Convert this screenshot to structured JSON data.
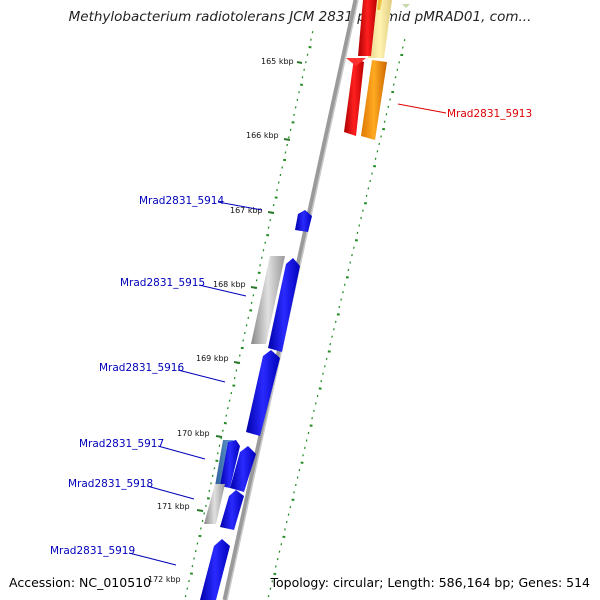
{
  "header": {
    "title": "Methylobacterium radiotolerans JCM 2831 plasmid pMRAD01, com..."
  },
  "footer": {
    "accession": "Accession: NC_010510",
    "topology": "Topology: circular; Length: 586,164 bp; Genes: 514"
  },
  "ticks": [
    "165 kbp",
    "166 kbp",
    "167 kbp",
    "168 kbp",
    "169 kbp",
    "170 kbp",
    "171 kbp",
    "172 kbp"
  ],
  "genes": [
    {
      "label": "Mrad2831_5913",
      "strand": "forward",
      "color": "#dd0000"
    },
    {
      "label": "Mrad2831_5914",
      "strand": "reverse",
      "color": "#0000bb"
    },
    {
      "label": "Mrad2831_5915",
      "strand": "reverse",
      "color": "#0000bb"
    },
    {
      "label": "Mrad2831_5916",
      "strand": "reverse",
      "color": "#0000bb"
    },
    {
      "label": "Mrad2831_5917",
      "strand": "reverse",
      "color": "#0000bb"
    },
    {
      "label": "Mrad2831_5918",
      "strand": "reverse",
      "color": "#0000bb"
    },
    {
      "label": "Mrad2831_5919",
      "strand": "reverse",
      "color": "#0000bb"
    }
  ],
  "colors": {
    "backbone": "#888888",
    "gc_skew": "#228b22",
    "forward_gene": "#ee0000",
    "forward_gene_shadow": "#ff9900",
    "reverse_gene": "#0000ee",
    "reverse_shadow": "#b0b0b0",
    "highlight": "#f5e6a0"
  }
}
